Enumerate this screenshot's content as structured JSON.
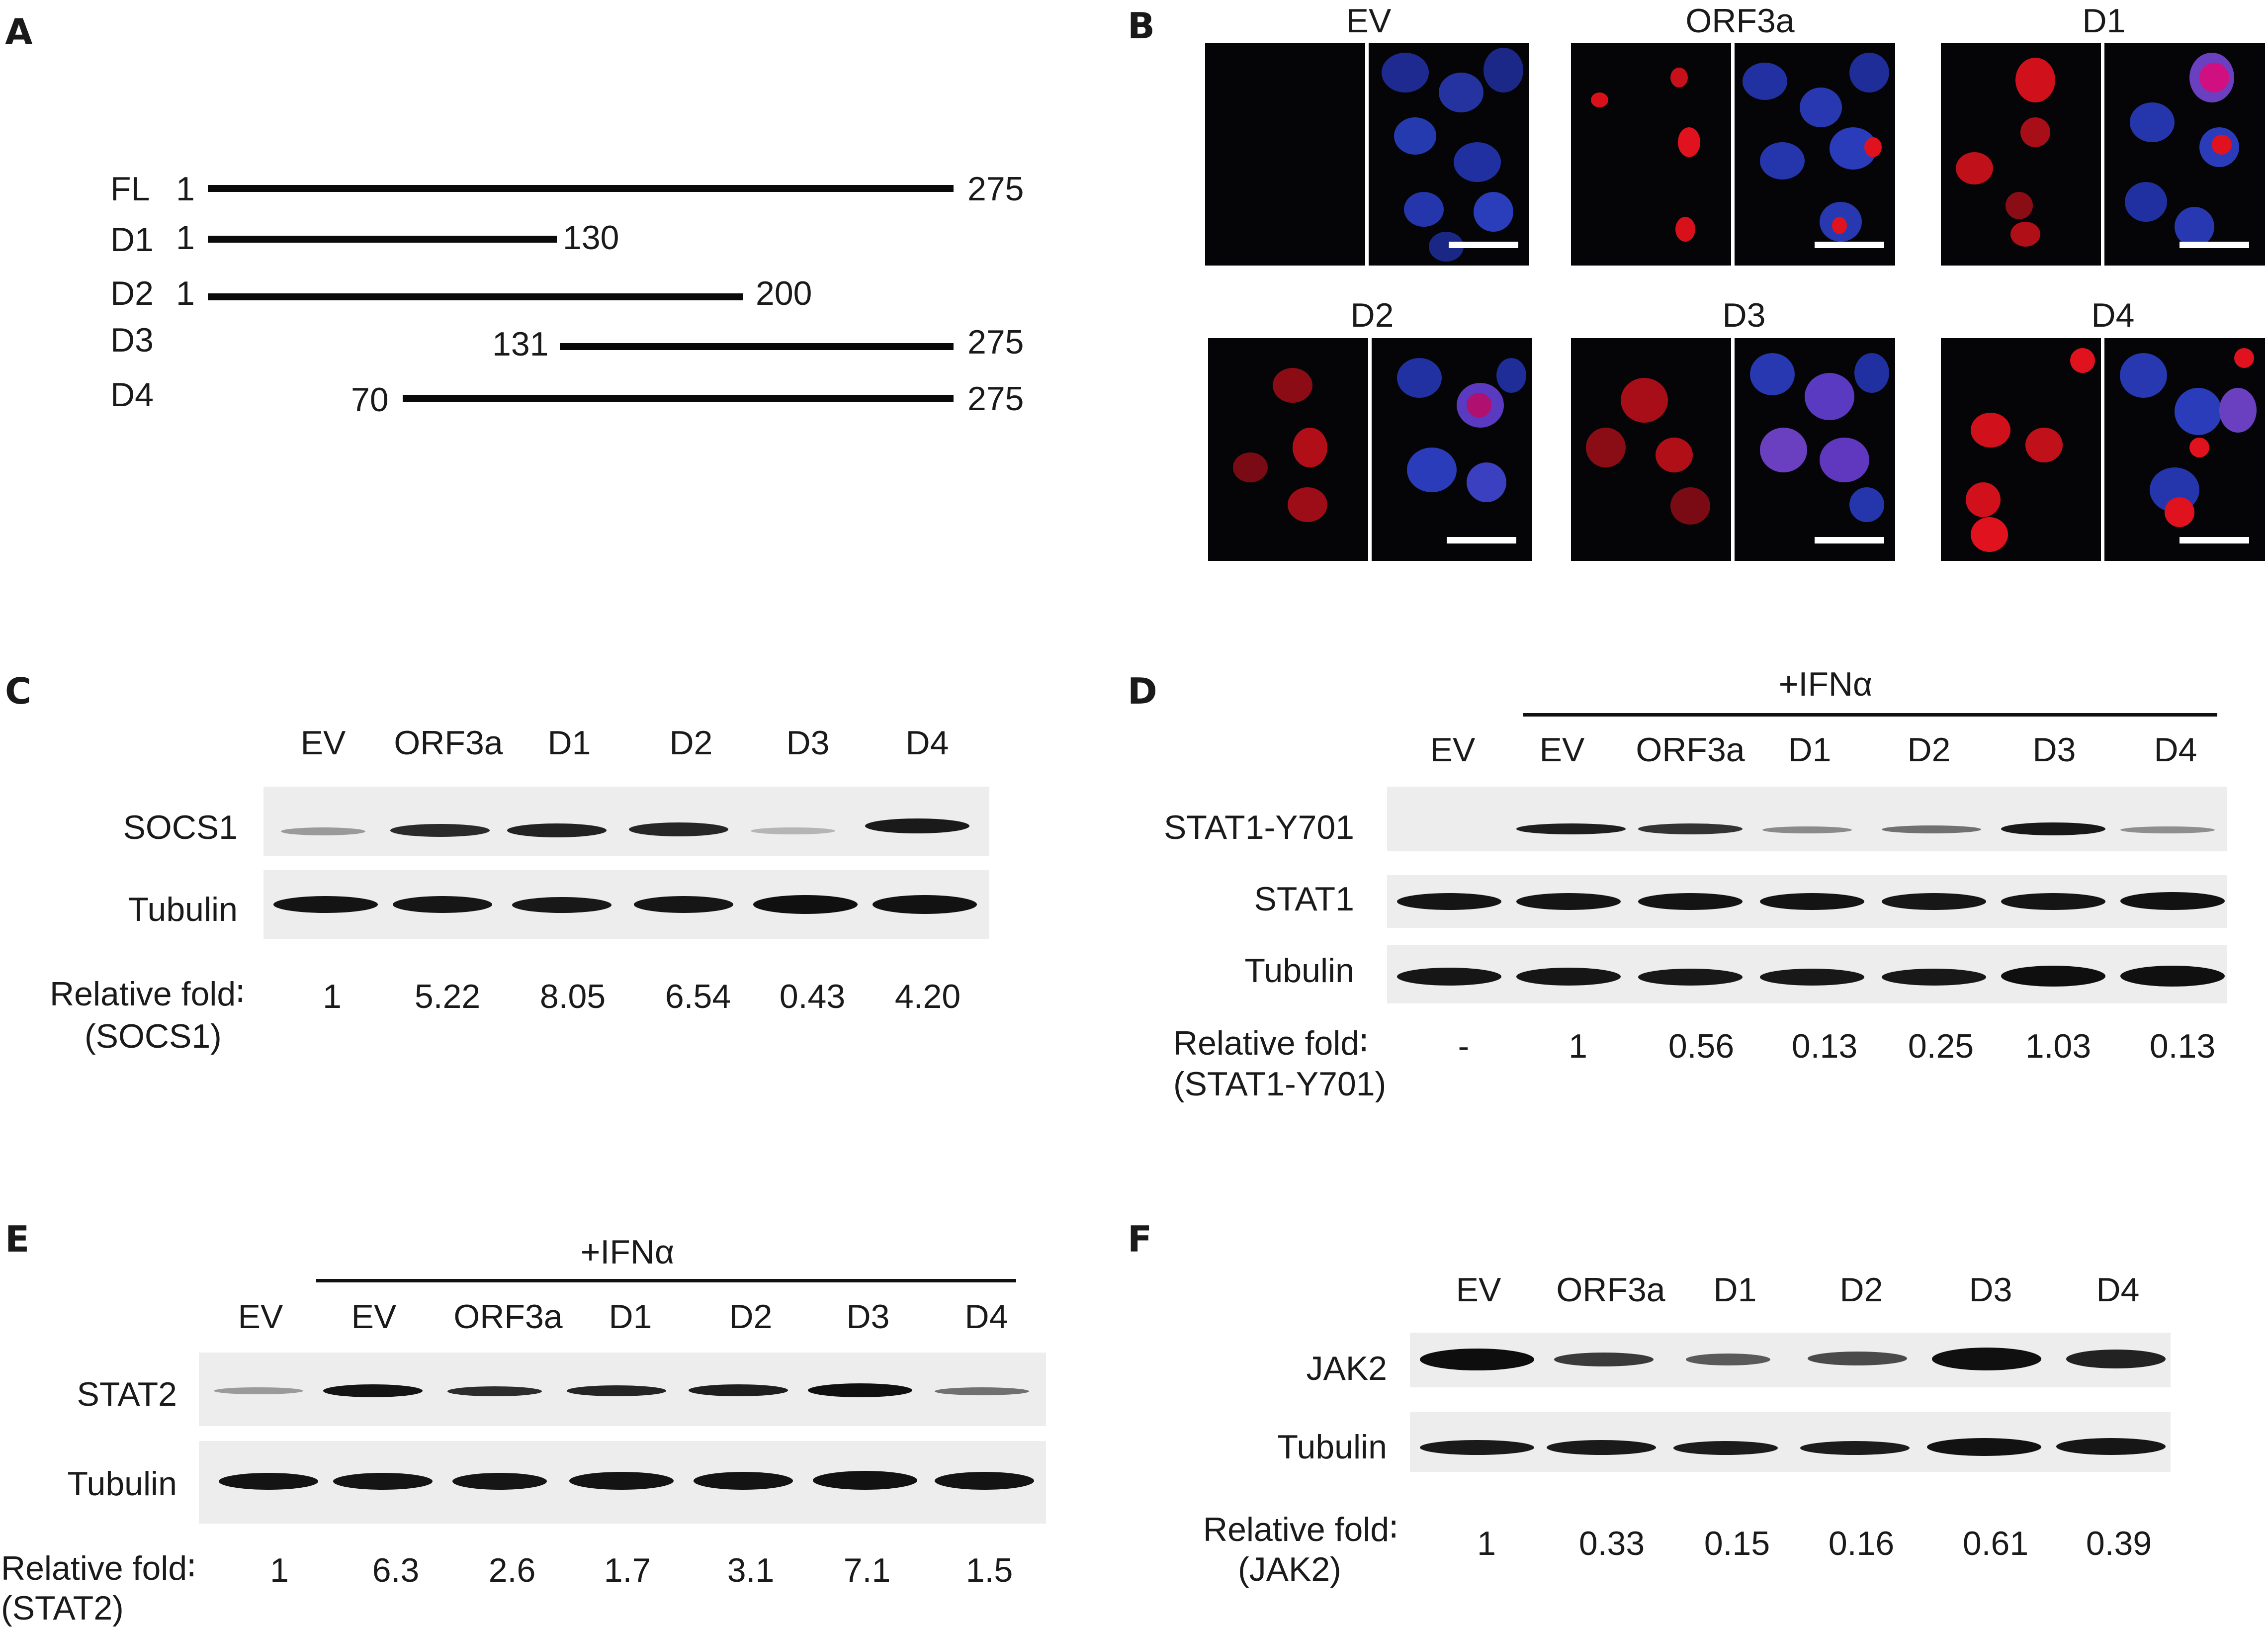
{
  "panels": {
    "A": "A",
    "B": "B",
    "C": "C",
    "D": "D",
    "E": "E",
    "F": "F"
  },
  "panel_a": {
    "constructs": [
      {
        "name": "FL",
        "start": "1",
        "end": "275"
      },
      {
        "name": "D1",
        "start": "1",
        "end": "130"
      },
      {
        "name": "D2",
        "start": "1",
        "end": "200"
      },
      {
        "name": "D3",
        "start": "131",
        "end": "275"
      },
      {
        "name": "D4",
        "start": "70",
        "end": "275"
      }
    ]
  },
  "panel_b": {
    "titles": [
      "EV",
      "ORF3a",
      "D1",
      "D2",
      "D3",
      "D4"
    ]
  },
  "panel_c": {
    "lanes": [
      "EV",
      "ORF3a",
      "D1",
      "D2",
      "D3",
      "D4"
    ],
    "rows": [
      "SOCS1",
      "Tubulin"
    ],
    "fold_label": "Relative fold∶",
    "fold_sub": "(SOCS1)",
    "fold_values": [
      "1",
      "5.22",
      "8.05",
      "6.54",
      "0.43",
      "4.20"
    ]
  },
  "panel_d": {
    "treatment": "+IFNα",
    "lanes": [
      "EV",
      "EV",
      "ORF3a",
      "D1",
      "D2",
      "D3",
      "D4"
    ],
    "rows": [
      "STAT1-Y701",
      "STAT1",
      "Tubulin"
    ],
    "fold_label": "Relative fold∶",
    "fold_sub": "(STAT1-Y701)",
    "fold_values": [
      "-",
      "1",
      "0.56",
      "0.13",
      "0.25",
      "1.03",
      "0.13"
    ]
  },
  "panel_e": {
    "treatment": "+IFNα",
    "lanes": [
      "EV",
      "EV",
      "ORF3a",
      "D1",
      "D2",
      "D3",
      "D4"
    ],
    "rows": [
      "STAT2",
      "Tubulin"
    ],
    "fold_label": "Relative fold∶",
    "fold_sub": "(STAT2)",
    "fold_values": [
      "1",
      "6.3",
      "2.6",
      "1.7",
      "3.1",
      "7.1",
      "1.5"
    ]
  },
  "panel_f": {
    "lanes": [
      "EV",
      "ORF3a",
      "D1",
      "D2",
      "D3",
      "D4"
    ],
    "rows": [
      "JAK2",
      "Tubulin"
    ],
    "fold_label": "Relative fold∶",
    "fold_sub": "(JAK2)",
    "fold_values": [
      "1",
      "0.33",
      "0.15",
      "0.16",
      "0.61",
      "0.39"
    ]
  }
}
